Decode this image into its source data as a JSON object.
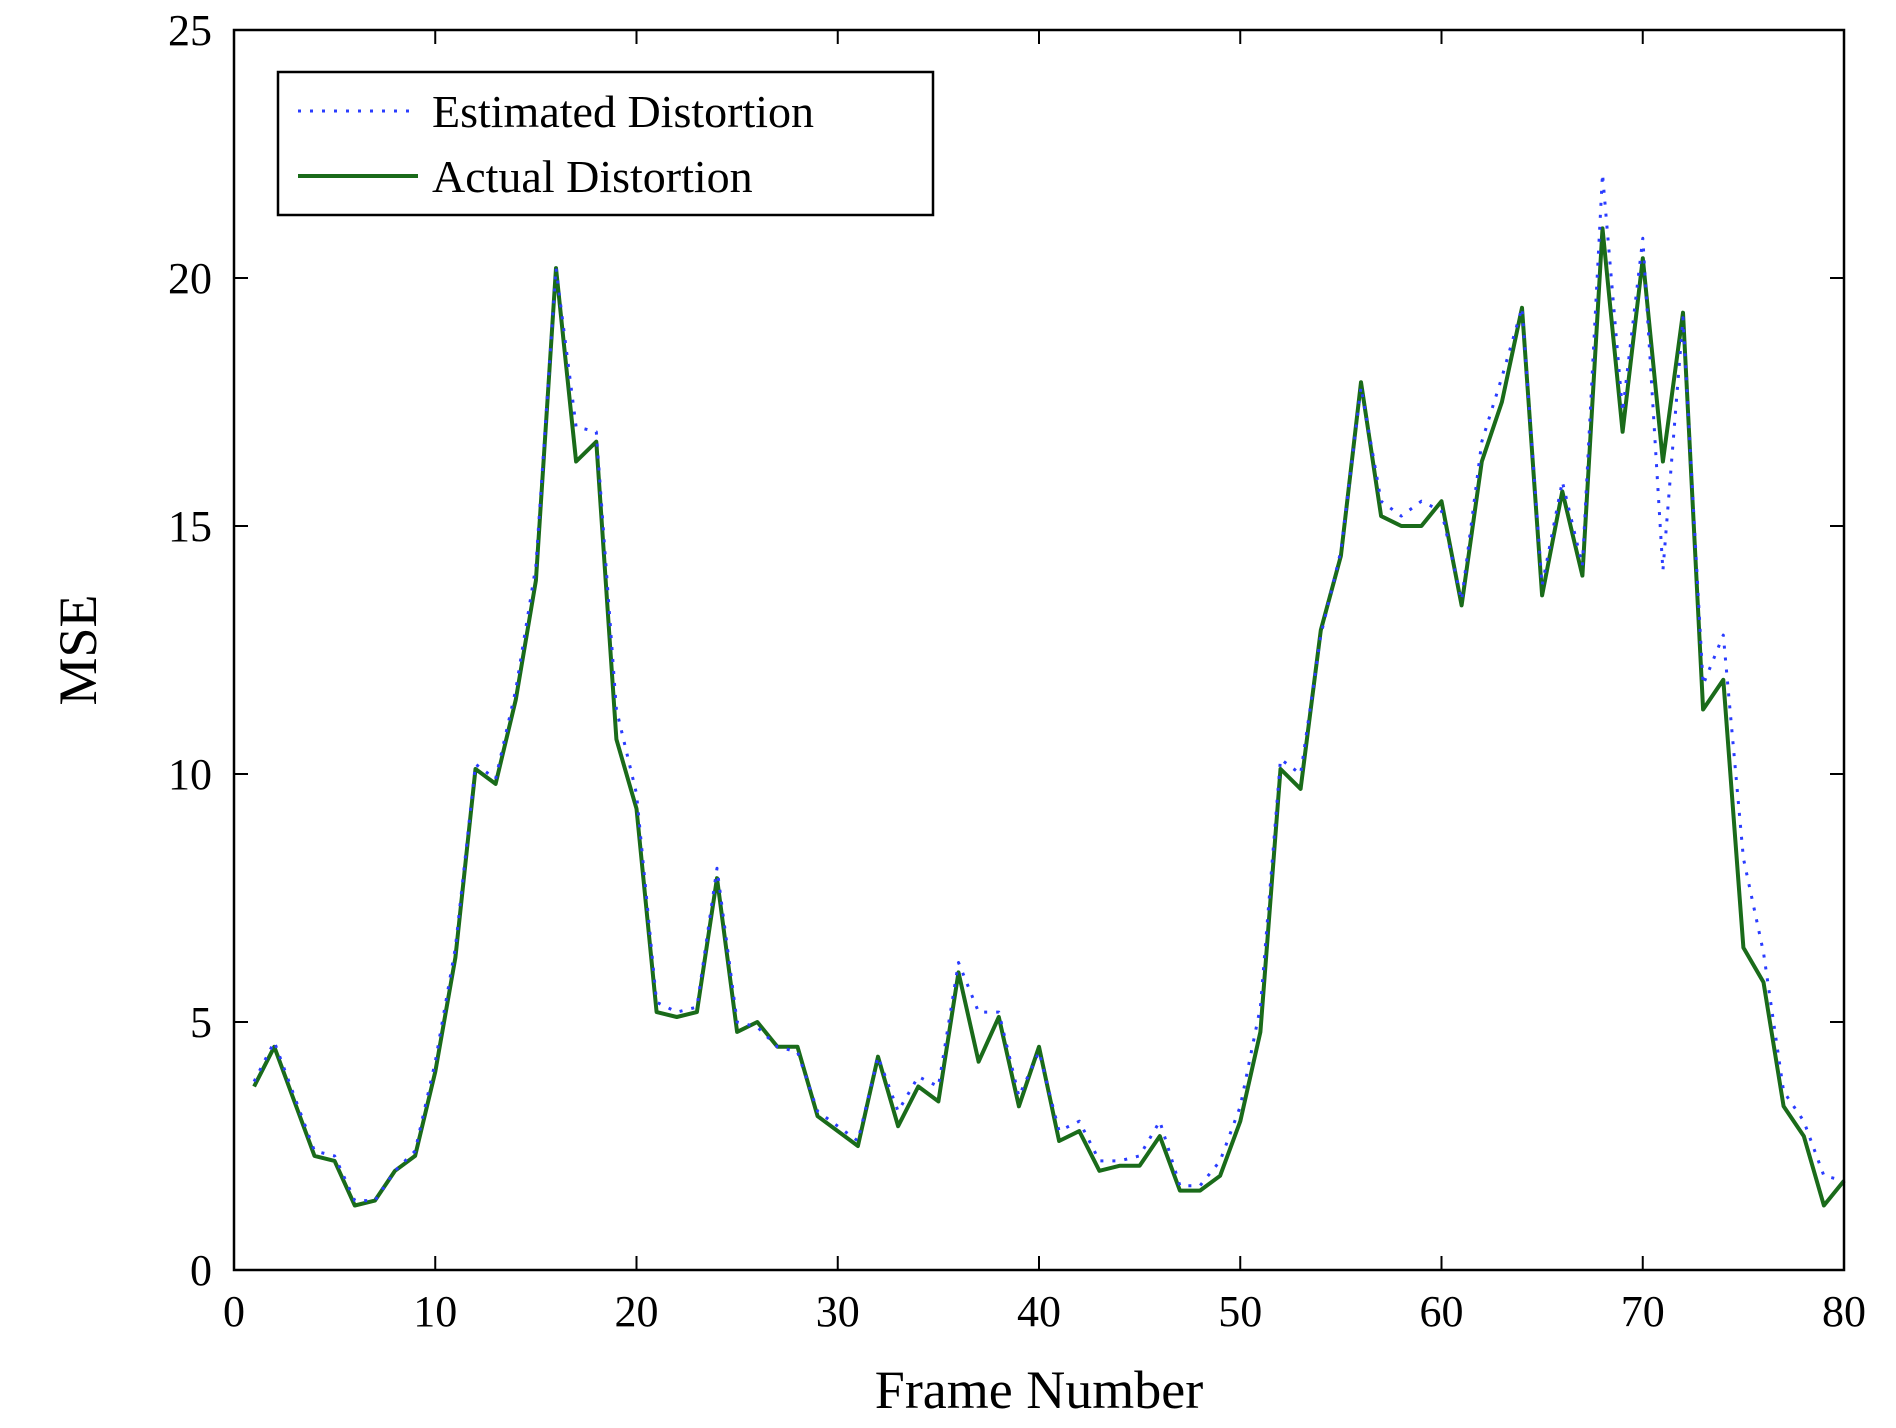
{
  "chart_data": {
    "type": "line",
    "xlabel": "Frame Number",
    "ylabel": "MSE",
    "xlim": [
      0,
      80
    ],
    "ylim": [
      0,
      25
    ],
    "xticks": [
      "0",
      "10",
      "20",
      "30",
      "40",
      "50",
      "60",
      "70",
      "80"
    ],
    "yticks": [
      "0",
      "5",
      "10",
      "15",
      "20",
      "25"
    ],
    "grid": false,
    "legend_position": "top-left",
    "x": [
      1,
      2,
      3,
      4,
      5,
      6,
      7,
      8,
      9,
      10,
      11,
      12,
      13,
      14,
      15,
      16,
      17,
      18,
      19,
      20,
      21,
      22,
      23,
      24,
      25,
      26,
      27,
      28,
      29,
      30,
      31,
      32,
      33,
      34,
      35,
      36,
      37,
      38,
      39,
      40,
      41,
      42,
      43,
      44,
      45,
      46,
      47,
      48,
      49,
      50,
      51,
      52,
      53,
      54,
      55,
      56,
      57,
      58,
      59,
      60,
      61,
      62,
      63,
      64,
      65,
      66,
      67,
      68,
      69,
      70,
      71,
      72,
      73,
      74,
      75,
      76,
      77,
      78,
      79,
      80
    ],
    "series": [
      {
        "name": "Estimated Distortion",
        "color": "#2a3cff",
        "style": "dotted",
        "values": [
          3.8,
          4.6,
          3.5,
          2.4,
          2.3,
          1.4,
          1.4,
          2.0,
          2.4,
          4.2,
          6.5,
          10.2,
          9.9,
          11.7,
          14.2,
          20.2,
          17.0,
          16.9,
          11.3,
          9.6,
          5.4,
          5.2,
          5.3,
          8.1,
          5.0,
          4.9,
          4.5,
          4.4,
          3.2,
          2.9,
          2.6,
          4.3,
          3.2,
          3.9,
          3.7,
          6.2,
          5.2,
          5.2,
          3.5,
          4.4,
          2.8,
          3.0,
          2.2,
          2.2,
          2.3,
          3.0,
          1.7,
          1.7,
          2.2,
          3.3,
          5.3,
          10.3,
          10.0,
          12.8,
          14.5,
          17.8,
          15.5,
          15.2,
          15.5,
          15.3,
          13.5,
          16.7,
          18.0,
          19.4,
          13.8,
          15.9,
          14.2,
          22.1,
          17.3,
          20.8,
          14.1,
          19.2,
          11.8,
          12.8,
          8.3,
          6.4,
          3.6,
          3.0,
          1.9,
          1.8
        ]
      },
      {
        "name": "Actual Distortion",
        "color": "#1a6b1a",
        "style": "solid",
        "values": [
          3.7,
          4.5,
          3.4,
          2.3,
          2.2,
          1.3,
          1.4,
          2.0,
          2.3,
          4.0,
          6.3,
          10.1,
          9.8,
          11.5,
          13.9,
          20.2,
          16.3,
          16.7,
          10.7,
          9.3,
          5.2,
          5.1,
          5.2,
          7.9,
          4.8,
          5.0,
          4.5,
          4.5,
          3.1,
          2.8,
          2.5,
          4.3,
          2.9,
          3.7,
          3.4,
          6.0,
          4.2,
          5.1,
          3.3,
          4.5,
          2.6,
          2.8,
          2.0,
          2.1,
          2.1,
          2.7,
          1.6,
          1.6,
          1.9,
          3.0,
          4.8,
          10.1,
          9.7,
          12.9,
          14.4,
          17.9,
          15.2,
          15.0,
          15.0,
          15.5,
          13.4,
          16.3,
          17.5,
          19.4,
          13.6,
          15.7,
          14.0,
          21.0,
          16.9,
          20.4,
          16.3,
          19.3,
          11.3,
          11.9,
          6.5,
          5.8,
          3.3,
          2.7,
          1.3,
          1.8
        ]
      }
    ]
  }
}
